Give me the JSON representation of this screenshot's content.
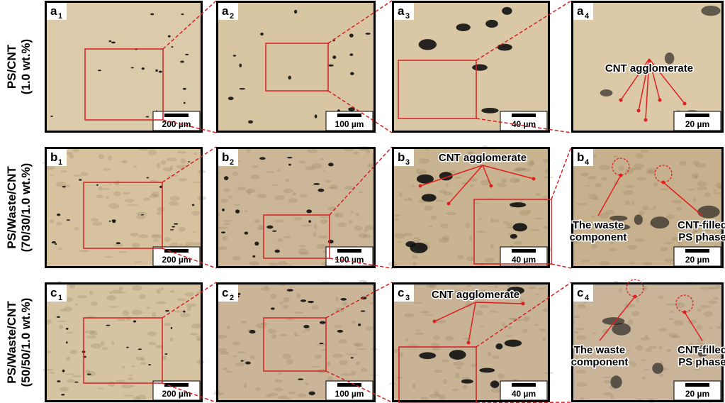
{
  "rows": [
    {
      "label": [
        "PS/CNT",
        "(1.0 wt.%)"
      ],
      "panels": [
        {
          "letter": "a",
          "sub": "1",
          "scale": "200 µm"
        },
        {
          "letter": "a",
          "sub": "2",
          "scale": "100 µm"
        },
        {
          "letter": "a",
          "sub": "3",
          "scale": "40 µm"
        },
        {
          "letter": "a",
          "sub": "4",
          "scale": "20 µm",
          "annotations": [
            [
              "CNT agglomerate"
            ]
          ]
        }
      ]
    },
    {
      "label": [
        "PS/Waste/CNT",
        "(70/30/1.0 wt.%)"
      ],
      "panels": [
        {
          "letter": "b",
          "sub": "1",
          "scale": "200 µm"
        },
        {
          "letter": "b",
          "sub": "2",
          "scale": "100 µm"
        },
        {
          "letter": "b",
          "sub": "3",
          "scale": "40 µm",
          "annotations": [
            [
              "CNT agglomerate"
            ]
          ]
        },
        {
          "letter": "b",
          "sub": "4",
          "scale": "20 µm",
          "annotations": [
            [
              "The waste",
              "component"
            ],
            [
              "CNT-filled",
              "PS phase"
            ]
          ]
        }
      ]
    },
    {
      "label": [
        "PS/Waste/CNT",
        "(50/50/1.0 wt.%)"
      ],
      "panels": [
        {
          "letter": "c",
          "sub": "1",
          "scale": "200 µm"
        },
        {
          "letter": "c",
          "sub": "2",
          "scale": "100 µm"
        },
        {
          "letter": "c",
          "sub": "3",
          "scale": "40 µm",
          "annotations": [
            [
              "CNT agglomerate"
            ]
          ]
        },
        {
          "letter": "c",
          "sub": "4",
          "scale": "20 µm",
          "annotations": [
            [
              "The waste",
              "component"
            ],
            [
              "CNT-filled",
              "PS phase"
            ]
          ]
        }
      ]
    }
  ]
}
